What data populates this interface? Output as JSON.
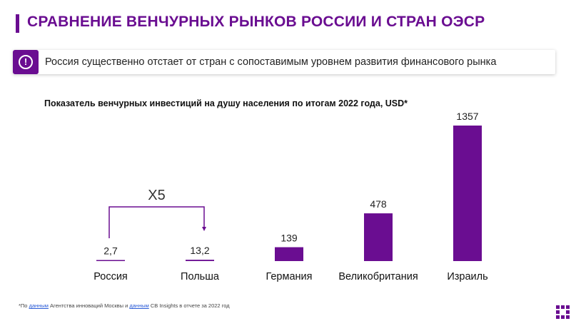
{
  "header": {
    "title": "СРАВНЕНИЕ ВЕНЧУРНЫХ РЫНКОВ РОССИИ И СТРАН ОЭСР"
  },
  "callout": {
    "icon": "exclamation-circle-icon",
    "text": "Россия существенно отстает от стран с сопоставимым уровнем развития финансового рынка"
  },
  "colors": {
    "accent": "#6a0d91"
  },
  "chart_data": {
    "type": "bar",
    "title": "Показатель венчурных инвестиций на душу населения по итогам 2022 года, USD*",
    "categories": [
      "Россия",
      "Польша",
      "Германия",
      "Великобритания",
      "Израиль"
    ],
    "values": [
      2.7,
      13.2,
      139,
      478,
      1357
    ],
    "value_labels": [
      "2,7",
      "13,2",
      "139",
      "478",
      "1357"
    ],
    "ylim": [
      0,
      1357
    ],
    "grid": false,
    "annotation": {
      "text": "X5",
      "from": "Россия",
      "to": "Польша"
    }
  },
  "footnote": {
    "p1": "*По ",
    "link1": "данным",
    "p2": " Агентства инноваций Москвы и ",
    "link2": "данным",
    "p3": " CB Insights в отчете за 2022 год"
  }
}
